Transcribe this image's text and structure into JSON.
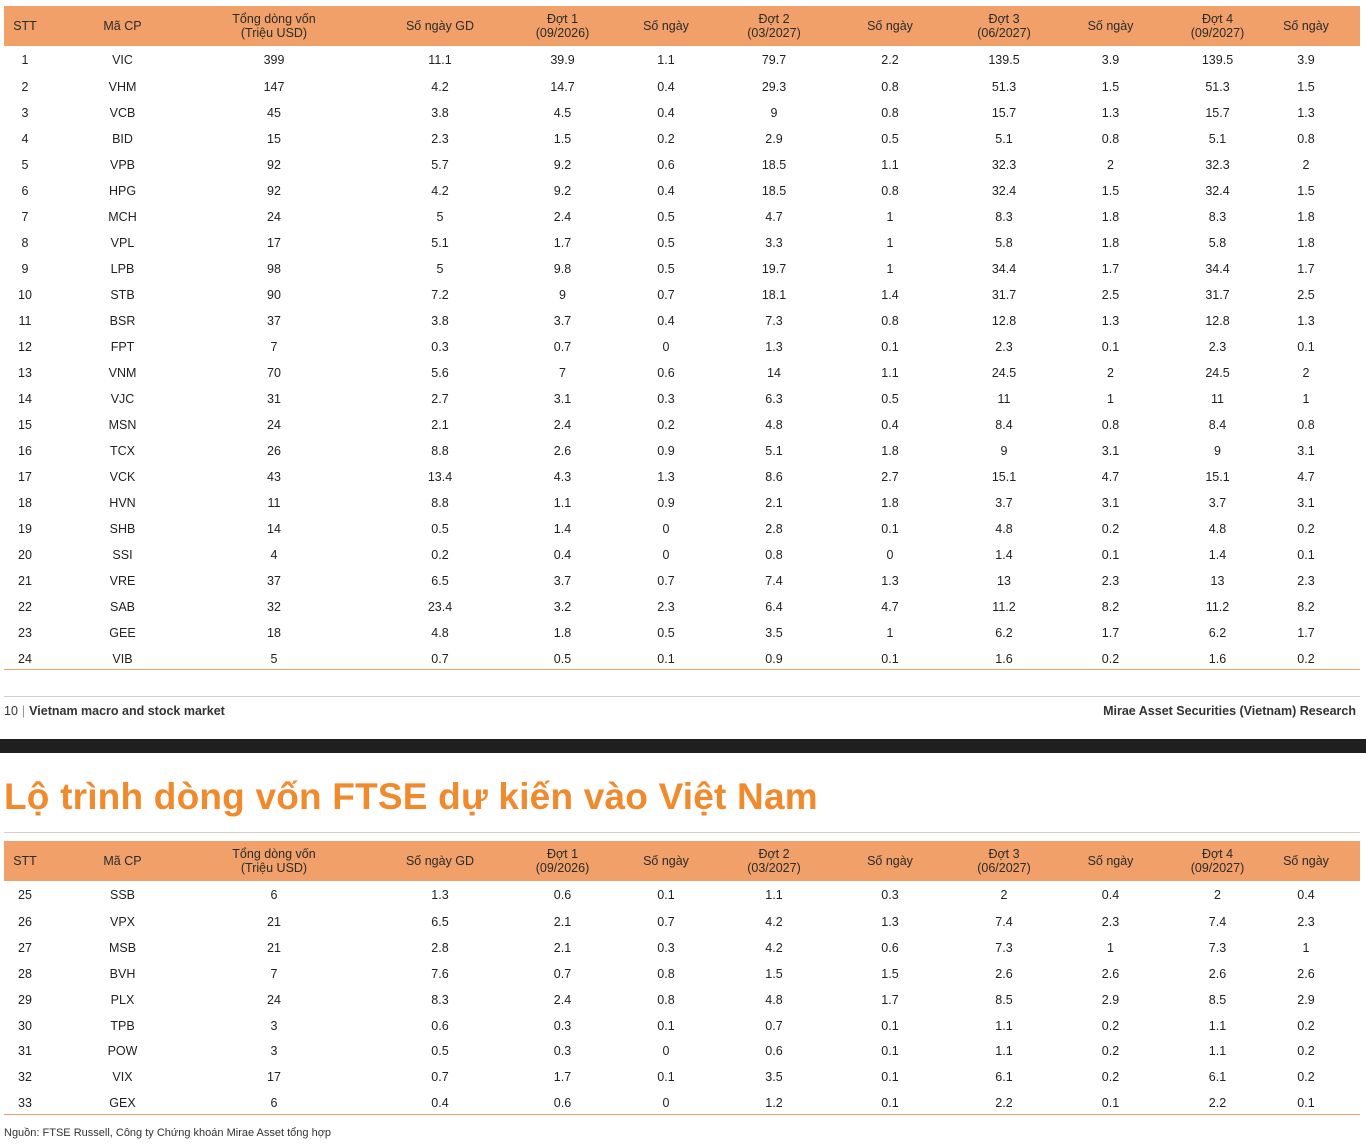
{
  "headers": [
    "STT",
    "Mã CP",
    "Tổng dòng vốn\n(Triệu USD)",
    "Số ngày GD",
    "Đợt 1\n(09/2026)",
    "Số ngày",
    "Đợt 2\n(03/2027)",
    "Số ngày",
    "Đợt 3\n(06/2027)",
    "Số ngày",
    "Đợt 4\n(09/2027)",
    "Số ngày"
  ],
  "table1_rows": [
    [
      "1",
      "VIC",
      "399",
      "11.1",
      "39.9",
      "1.1",
      "79.7",
      "2.2",
      "139.5",
      "3.9",
      "139.5",
      "3.9"
    ],
    [
      "2",
      "VHM",
      "147",
      "4.2",
      "14.7",
      "0.4",
      "29.3",
      "0.8",
      "51.3",
      "1.5",
      "51.3",
      "1.5"
    ],
    [
      "3",
      "VCB",
      "45",
      "3.8",
      "4.5",
      "0.4",
      "9",
      "0.8",
      "15.7",
      "1.3",
      "15.7",
      "1.3"
    ],
    [
      "4",
      "BID",
      "15",
      "2.3",
      "1.5",
      "0.2",
      "2.9",
      "0.5",
      "5.1",
      "0.8",
      "5.1",
      "0.8"
    ],
    [
      "5",
      "VPB",
      "92",
      "5.7",
      "9.2",
      "0.6",
      "18.5",
      "1.1",
      "32.3",
      "2",
      "32.3",
      "2"
    ],
    [
      "6",
      "HPG",
      "92",
      "4.2",
      "9.2",
      "0.4",
      "18.5",
      "0.8",
      "32.4",
      "1.5",
      "32.4",
      "1.5"
    ],
    [
      "7",
      "MCH",
      "24",
      "5",
      "2.4",
      "0.5",
      "4.7",
      "1",
      "8.3",
      "1.8",
      "8.3",
      "1.8"
    ],
    [
      "8",
      "VPL",
      "17",
      "5.1",
      "1.7",
      "0.5",
      "3.3",
      "1",
      "5.8",
      "1.8",
      "5.8",
      "1.8"
    ],
    [
      "9",
      "LPB",
      "98",
      "5",
      "9.8",
      "0.5",
      "19.7",
      "1",
      "34.4",
      "1.7",
      "34.4",
      "1.7"
    ],
    [
      "10",
      "STB",
      "90",
      "7.2",
      "9",
      "0.7",
      "18.1",
      "1.4",
      "31.7",
      "2.5",
      "31.7",
      "2.5"
    ],
    [
      "11",
      "BSR",
      "37",
      "3.8",
      "3.7",
      "0.4",
      "7.3",
      "0.8",
      "12.8",
      "1.3",
      "12.8",
      "1.3"
    ],
    [
      "12",
      "FPT",
      "7",
      "0.3",
      "0.7",
      "0",
      "1.3",
      "0.1",
      "2.3",
      "0.1",
      "2.3",
      "0.1"
    ],
    [
      "13",
      "VNM",
      "70",
      "5.6",
      "7",
      "0.6",
      "14",
      "1.1",
      "24.5",
      "2",
      "24.5",
      "2"
    ],
    [
      "14",
      "VJC",
      "31",
      "2.7",
      "3.1",
      "0.3",
      "6.3",
      "0.5",
      "11",
      "1",
      "11",
      "1"
    ],
    [
      "15",
      "MSN",
      "24",
      "2.1",
      "2.4",
      "0.2",
      "4.8",
      "0.4",
      "8.4",
      "0.8",
      "8.4",
      "0.8"
    ],
    [
      "16",
      "TCX",
      "26",
      "8.8",
      "2.6",
      "0.9",
      "5.1",
      "1.8",
      "9",
      "3.1",
      "9",
      "3.1"
    ],
    [
      "17",
      "VCK",
      "43",
      "13.4",
      "4.3",
      "1.3",
      "8.6",
      "2.7",
      "15.1",
      "4.7",
      "15.1",
      "4.7"
    ],
    [
      "18",
      "HVN",
      "11",
      "8.8",
      "1.1",
      "0.9",
      "2.1",
      "1.8",
      "3.7",
      "3.1",
      "3.7",
      "3.1"
    ],
    [
      "19",
      "SHB",
      "14",
      "0.5",
      "1.4",
      "0",
      "2.8",
      "0.1",
      "4.8",
      "0.2",
      "4.8",
      "0.2"
    ],
    [
      "20",
      "SSI",
      "4",
      "0.2",
      "0.4",
      "0",
      "0.8",
      "0",
      "1.4",
      "0.1",
      "1.4",
      "0.1"
    ],
    [
      "21",
      "VRE",
      "37",
      "6.5",
      "3.7",
      "0.7",
      "7.4",
      "1.3",
      "13",
      "2.3",
      "13",
      "2.3"
    ],
    [
      "22",
      "SAB",
      "32",
      "23.4",
      "3.2",
      "2.3",
      "6.4",
      "4.7",
      "11.2",
      "8.2",
      "11.2",
      "8.2"
    ],
    [
      "23",
      "GEE",
      "18",
      "4.8",
      "1.8",
      "0.5",
      "3.5",
      "1",
      "6.2",
      "1.7",
      "6.2",
      "1.7"
    ],
    [
      "24",
      "VIB",
      "5",
      "0.7",
      "0.5",
      "0.1",
      "0.9",
      "0.1",
      "1.6",
      "0.2",
      "1.6",
      "0.2"
    ]
  ],
  "table2_rows": [
    [
      "25",
      "SSB",
      "6",
      "1.3",
      "0.6",
      "0.1",
      "1.1",
      "0.3",
      "2",
      "0.4",
      "2",
      "0.4"
    ],
    [
      "26",
      "VPX",
      "21",
      "6.5",
      "2.1",
      "0.7",
      "4.2",
      "1.3",
      "7.4",
      "2.3",
      "7.4",
      "2.3"
    ],
    [
      "27",
      "MSB",
      "21",
      "2.8",
      "2.1",
      "0.3",
      "4.2",
      "0.6",
      "7.3",
      "1",
      "7.3",
      "1"
    ],
    [
      "28",
      "BVH",
      "7",
      "7.6",
      "0.7",
      "0.8",
      "1.5",
      "1.5",
      "2.6",
      "2.6",
      "2.6",
      "2.6"
    ],
    [
      "29",
      "PLX",
      "24",
      "8.3",
      "2.4",
      "0.8",
      "4.8",
      "1.7",
      "8.5",
      "2.9",
      "8.5",
      "2.9"
    ],
    [
      "30",
      "TPB",
      "3",
      "0.6",
      "0.3",
      "0.1",
      "0.7",
      "0.1",
      "1.1",
      "0.2",
      "1.1",
      "0.2"
    ],
    [
      "31",
      "POW",
      "3",
      "0.5",
      "0.3",
      "0",
      "0.6",
      "0.1",
      "1.1",
      "0.2",
      "1.1",
      "0.2"
    ],
    [
      "32",
      "VIX",
      "17",
      "0.7",
      "1.7",
      "0.1",
      "3.5",
      "0.1",
      "6.1",
      "0.2",
      "6.1",
      "0.2"
    ],
    [
      "33",
      "GEX",
      "6",
      "0.4",
      "0.6",
      "0",
      "1.2",
      "0.1",
      "2.2",
      "0.1",
      "2.2",
      "0.1"
    ]
  ],
  "footer": {
    "page_number": "10",
    "separator": "|",
    "report_title": "Vietnam macro and stock market",
    "publisher": "Mirae Asset Securities (Vietnam) Research"
  },
  "heading": "Lộ trình dòng vốn FTSE dự kiến vào Việt Nam",
  "source": "Nguồn: FTSE Russell, Công ty Chứng khoán Mirae Asset tổng hợp",
  "colors": {
    "header_bg": "#f0a068",
    "heading": "#f08a2c",
    "band": "#1f1f1f"
  }
}
